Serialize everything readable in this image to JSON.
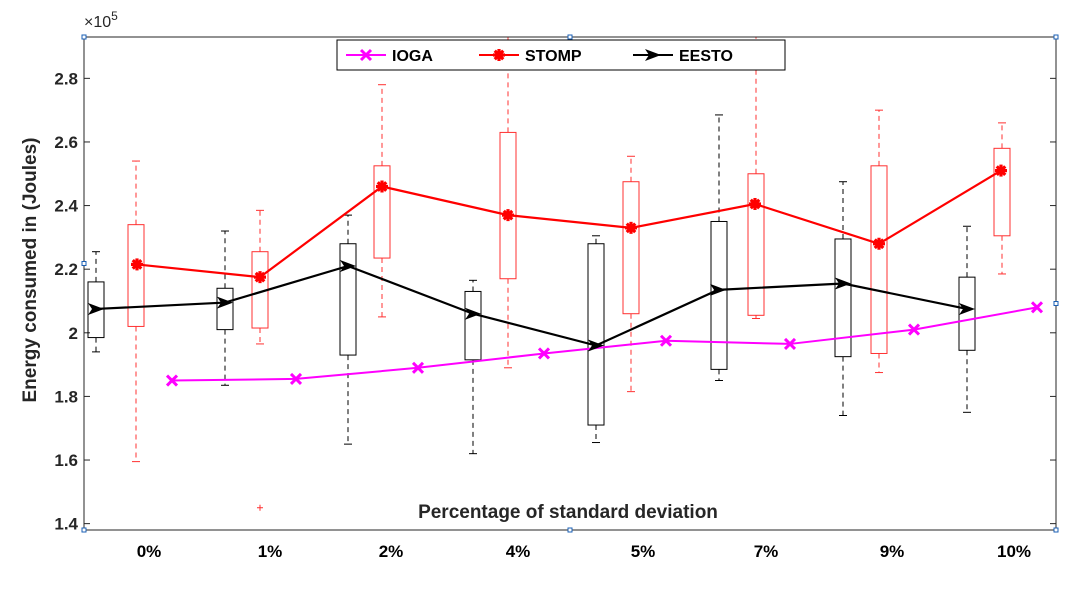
{
  "chart_data": {
    "type": "line",
    "title": "",
    "xlabel": "Percentage of standard deviation",
    "ylabel": "Energy consumed in (Joules)",
    "y_multiplier": "×10",
    "y_multiplier_exponent": "5",
    "ylim": [
      1.38,
      2.93
    ],
    "yticks": [
      "1.4",
      "1.6",
      "1.8",
      "2",
      "2.2",
      "2.4",
      "2.6",
      "2.8"
    ],
    "ytick_values": [
      1.4,
      1.6,
      1.8,
      2.0,
      2.2,
      2.4,
      2.6,
      2.8
    ],
    "categories": [
      "0%",
      "1%",
      "2%",
      "4%",
      "5%",
      "7%",
      "9%",
      "10%"
    ],
    "legend": {
      "position": "top-center"
    },
    "series": [
      {
        "name": "IOGA",
        "color": "#ff00ff",
        "marker": "x",
        "values": [
          1.85,
          1.855,
          1.89,
          1.935,
          1.975,
          1.965,
          2.01,
          2.08
        ]
      },
      {
        "name": "STOMP",
        "color": "#ff0000",
        "marker": "*",
        "values": [
          2.215,
          2.175,
          2.46,
          2.37,
          2.33,
          2.405,
          2.28,
          2.51
        ],
        "box": [
          {
            "whisker_low": 1.595,
            "q1": 2.02,
            "q3": 2.34,
            "whisker_high": 2.54,
            "outliers": []
          },
          {
            "whisker_low": 1.965,
            "q1": 2.015,
            "q3": 2.255,
            "whisker_high": 2.385,
            "outliers": [
              1.45
            ]
          },
          {
            "whisker_low": 2.05,
            "q1": 2.235,
            "q3": 2.525,
            "whisker_high": 2.78,
            "outliers": []
          },
          {
            "whisker_low": 1.89,
            "q1": 2.17,
            "q3": 2.63,
            "whisker_high": 2.93,
            "outliers": []
          },
          {
            "whisker_low": 1.815,
            "q1": 2.06,
            "q3": 2.475,
            "whisker_high": 2.555,
            "outliers": []
          },
          {
            "whisker_low": 2.045,
            "q1": 2.055,
            "q3": 2.5,
            "whisker_high": 2.93,
            "outliers": []
          },
          {
            "whisker_low": 1.875,
            "q1": 1.935,
            "q3": 2.525,
            "whisker_high": 2.7,
            "outliers": []
          },
          {
            "whisker_low": 2.185,
            "q1": 2.305,
            "q3": 2.58,
            "whisker_high": 2.66,
            "outliers": []
          }
        ]
      },
      {
        "name": "EESTO",
        "color": "#000000",
        "marker": "arrow",
        "values": [
          2.075,
          2.095,
          2.21,
          2.06,
          1.96,
          2.135,
          2.155,
          2.075
        ],
        "box": [
          {
            "whisker_low": 1.94,
            "q1": 1.985,
            "q3": 2.16,
            "whisker_high": 2.255,
            "outliers": []
          },
          {
            "whisker_low": 1.835,
            "q1": 2.01,
            "q3": 2.14,
            "whisker_high": 2.32,
            "outliers": []
          },
          {
            "whisker_low": 1.65,
            "q1": 1.93,
            "q3": 2.28,
            "whisker_high": 2.37,
            "outliers": []
          },
          {
            "whisker_low": 1.62,
            "q1": 1.915,
            "q3": 2.13,
            "whisker_high": 2.165,
            "outliers": []
          },
          {
            "whisker_low": 1.655,
            "q1": 1.71,
            "q3": 2.28,
            "whisker_high": 2.305,
            "outliers": []
          },
          {
            "whisker_low": 1.85,
            "q1": 1.885,
            "q3": 2.35,
            "whisker_high": 2.685,
            "outliers": []
          },
          {
            "whisker_low": 1.74,
            "q1": 1.925,
            "q3": 2.295,
            "whisker_high": 2.475,
            "outliers": []
          },
          {
            "whisker_low": 1.75,
            "q1": 1.945,
            "q3": 2.175,
            "whisker_high": 2.335,
            "outliers": []
          }
        ]
      }
    ]
  }
}
